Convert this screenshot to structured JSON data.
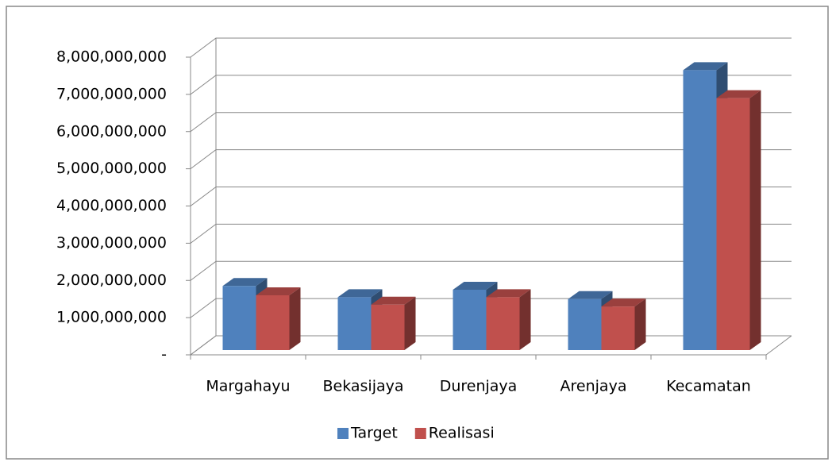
{
  "chart_data": {
    "type": "bar3d",
    "categories": [
      "Margahayu",
      "Bekasijaya",
      "Durenjaya",
      "Arenjaya",
      "Kecamatan"
    ],
    "series": [
      {
        "name": "Target",
        "color": "#4f81bd",
        "values": [
          1850000000,
          1550000000,
          1750000000,
          1500000000,
          7650000000
        ]
      },
      {
        "name": "Realisasi",
        "color": "#c0504d",
        "values": [
          1600000000,
          1350000000,
          1550000000,
          1300000000,
          6900000000
        ]
      }
    ],
    "ylim": [
      0,
      8000000000
    ],
    "yticks": [
      {
        "value": 0,
        "label": "-"
      },
      {
        "value": 1000000000,
        "label": "1,000,000,000"
      },
      {
        "value": 2000000000,
        "label": "2,000,000,000"
      },
      {
        "value": 3000000000,
        "label": "3,000,000,000"
      },
      {
        "value": 4000000000,
        "label": "4,000,000,000"
      },
      {
        "value": 5000000000,
        "label": "5,000,000,000"
      },
      {
        "value": 6000000000,
        "label": "6,000,000,000"
      },
      {
        "value": 7000000000,
        "label": "7,000,000,000"
      },
      {
        "value": 8000000000,
        "label": "8,000,000,000"
      }
    ],
    "grid": true,
    "legend": "bottom"
  }
}
